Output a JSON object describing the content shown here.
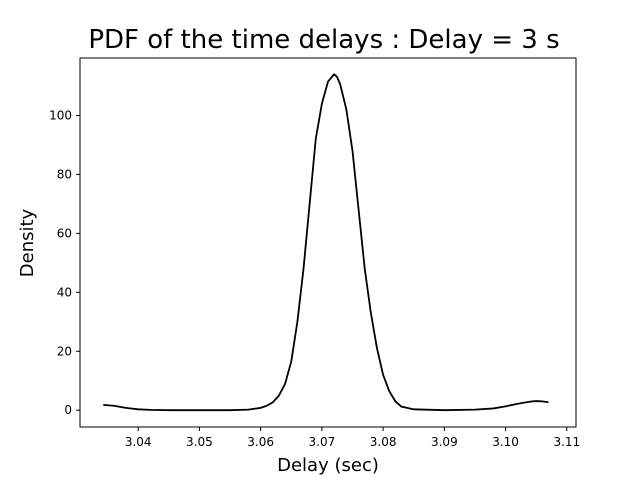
{
  "chart_data": {
    "type": "line",
    "title": "PDF of the time delays : Delay = 3 s",
    "xlabel": "Delay (sec)",
    "ylabel": "Density",
    "xlim": [
      3.0305,
      3.1115
    ],
    "ylim": [
      -5.7,
      119.5
    ],
    "xticks": [
      3.04,
      3.05,
      3.06,
      3.07,
      3.08,
      3.09,
      3.1,
      3.11
    ],
    "xtick_labels": [
      "3.04",
      "3.05",
      "3.06",
      "3.07",
      "3.08",
      "3.09",
      "3.10",
      "3.11"
    ],
    "yticks": [
      0,
      20,
      40,
      60,
      80,
      100
    ],
    "ytick_labels": [
      "0",
      "20",
      "40",
      "60",
      "80",
      "100"
    ],
    "grid": false,
    "series": [
      {
        "color": "#000000",
        "x": [
          3.0343,
          3.036,
          3.038,
          3.04,
          3.042,
          3.045,
          3.05,
          3.055,
          3.058,
          3.06,
          3.061,
          3.062,
          3.063,
          3.064,
          3.065,
          3.066,
          3.067,
          3.068,
          3.069,
          3.07,
          3.071,
          3.072,
          3.0725,
          3.073,
          3.074,
          3.075,
          3.076,
          3.077,
          3.078,
          3.079,
          3.08,
          3.081,
          3.082,
          3.083,
          3.085,
          3.09,
          3.095,
          3.098,
          3.1,
          3.102,
          3.104,
          3.105,
          3.106,
          3.107
        ],
        "y": [
          1.8,
          1.5,
          0.8,
          0.3,
          0.1,
          0.0,
          0.0,
          0.0,
          0.2,
          0.8,
          1.5,
          2.7,
          5.0,
          9.0,
          16.5,
          30.0,
          48.0,
          70.0,
          92.0,
          104.0,
          111.5,
          114.0,
          113.0,
          110.5,
          102.0,
          88.0,
          68.0,
          48.0,
          33.0,
          21.0,
          12.0,
          6.5,
          3.0,
          1.2,
          0.3,
          0.0,
          0.2,
          0.6,
          1.3,
          2.2,
          2.9,
          3.1,
          3.0,
          2.7
        ]
      }
    ]
  }
}
